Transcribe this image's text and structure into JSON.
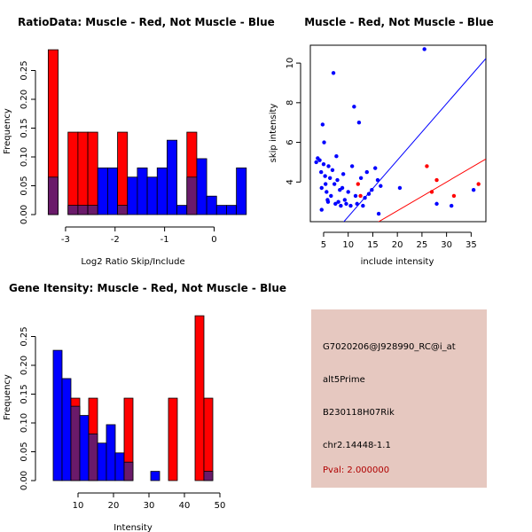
{
  "colors": {
    "red": "#ff0000",
    "blue": "#0000ff",
    "overlap": "#6a1a6a",
    "panel_bg": "#e6c8c0"
  },
  "chart_data": [
    {
      "type": "bar",
      "subtype": "overlapping-histogram",
      "title": "RatioData: Muscle - Red, Not Muscle - Blue",
      "xlabel": "Log2 Ratio Skip/Include",
      "ylabel": "Frequency",
      "xlim": [
        -3.5,
        0.6
      ],
      "ylim": [
        0,
        0.3
      ],
      "xticks": [
        -3,
        -2,
        -1,
        0
      ],
      "yticks": [
        0.0,
        0.05,
        0.1,
        0.15,
        0.2,
        0.25
      ],
      "ytick_labels": [
        "0.00",
        "0.05",
        "0.10",
        "0.15",
        "0.20",
        "0.25"
      ],
      "bin_edges": [
        -3.35,
        -3.15,
        -2.95,
        -2.75,
        -2.55,
        -2.35,
        -2.15,
        -1.95,
        -1.75,
        -1.55,
        -1.35,
        -1.15,
        -0.95,
        -0.75,
        -0.55,
        -0.35,
        -0.15,
        0.05,
        0.25,
        0.45,
        0.65
      ],
      "series": [
        {
          "name": "Muscle",
          "color": "red",
          "values": [
            0.286,
            0,
            0.143,
            0.143,
            0.143,
            0,
            0,
            0.143,
            0,
            0,
            0,
            0,
            0,
            0,
            0.143,
            0,
            0,
            0,
            0,
            0
          ]
        },
        {
          "name": "Not Muscle",
          "color": "blue",
          "values": [
            0.065,
            0,
            0.016,
            0.016,
            0.016,
            0.081,
            0.081,
            0.016,
            0.065,
            0.081,
            0.065,
            0.081,
            0.129,
            0.016,
            0.065,
            0.097,
            0.032,
            0.016,
            0.016,
            0.081
          ]
        }
      ]
    },
    {
      "type": "scatter",
      "title": "Muscle - Red, Not Muscle - Blue",
      "xlabel": "include intensity",
      "ylabel": "skip intensity",
      "xlim": [
        2.3,
        38
      ],
      "ylim": [
        2,
        10.9
      ],
      "xticks": [
        5,
        10,
        15,
        20,
        25,
        30,
        35
      ],
      "yticks": [
        4,
        6,
        8,
        10
      ],
      "lines": [
        {
          "name": "fit-blue",
          "color": "blue",
          "slope": 0.285,
          "intercept": -0.6
        },
        {
          "name": "fit-red",
          "color": "red",
          "slope": 0.145,
          "intercept": -0.35
        }
      ],
      "series": [
        {
          "name": "Muscle",
          "color": "red",
          "points": [
            [
              26,
              4.8
            ],
            [
              27,
              3.5
            ],
            [
              28,
              4.1
            ],
            [
              31.5,
              3.3
            ],
            [
              36.5,
              3.9
            ],
            [
              12.5,
              3.3
            ],
            [
              12,
              3.9
            ]
          ]
        },
        {
          "name": "Not Muscle",
          "color": "blue",
          "points": [
            [
              3.5,
              5.0
            ],
            [
              3.8,
              5.2
            ],
            [
              4.2,
              5.1
            ],
            [
              4.5,
              4.5
            ],
            [
              4.6,
              3.7
            ],
            [
              4.8,
              6.9
            ],
            [
              5.0,
              4.9
            ],
            [
              5.1,
              6.0
            ],
            [
              5.3,
              4.3
            ],
            [
              5.4,
              3.9
            ],
            [
              5.6,
              3.5
            ],
            [
              5.8,
              3.1
            ],
            [
              6.0,
              4.8
            ],
            [
              6.3,
              4.2
            ],
            [
              6.5,
              3.3
            ],
            [
              6.8,
              4.6
            ],
            [
              7.0,
              9.5
            ],
            [
              7.2,
              3.9
            ],
            [
              7.4,
              2.9
            ],
            [
              7.6,
              5.3
            ],
            [
              7.8,
              4.1
            ],
            [
              8.0,
              3.0
            ],
            [
              8.3,
              3.6
            ],
            [
              8.5,
              2.8
            ],
            [
              8.8,
              3.7
            ],
            [
              9.0,
              4.4
            ],
            [
              9.3,
              3.1
            ],
            [
              9.6,
              2.9
            ],
            [
              10.0,
              3.5
            ],
            [
              10.5,
              2.8
            ],
            [
              10.8,
              4.8
            ],
            [
              11.2,
              7.8
            ],
            [
              11.5,
              3.3
            ],
            [
              11.8,
              2.9
            ],
            [
              12.2,
              7.0
            ],
            [
              12.6,
              4.2
            ],
            [
              13.0,
              2.8
            ],
            [
              13.4,
              3.2
            ],
            [
              13.8,
              4.5
            ],
            [
              14.2,
              3.4
            ],
            [
              14.8,
              3.6
            ],
            [
              15.5,
              4.7
            ],
            [
              16.0,
              4.1
            ],
            [
              16.2,
              2.4
            ],
            [
              16.6,
              3.8
            ],
            [
              20.5,
              3.7
            ],
            [
              25.5,
              10.7
            ],
            [
              28.0,
              2.9
            ],
            [
              31.0,
              2.8
            ],
            [
              35.5,
              3.6
            ],
            [
              4.6,
              2.6
            ],
            [
              5.9,
              3.0
            ]
          ]
        }
      ]
    },
    {
      "type": "bar",
      "subtype": "overlapping-histogram",
      "title": "Gene Itensity: Muscle - Red, Not Muscle - Blue",
      "xlabel": "Intensity",
      "ylabel": "Frequency",
      "xlim": [
        0,
        50
      ],
      "ylim": [
        0,
        0.3
      ],
      "xticks": [
        10,
        20,
        30,
        40,
        50
      ],
      "yticks": [
        0.0,
        0.05,
        0.1,
        0.15,
        0.2,
        0.25
      ],
      "ytick_labels": [
        "0.00",
        "0.05",
        "0.10",
        "0.15",
        "0.20",
        "0.25"
      ],
      "bin_edges": [
        3,
        5.5,
        8,
        10.5,
        13,
        15.5,
        18,
        20.5,
        23,
        25.5,
        28,
        30.5,
        33,
        35.5,
        38,
        40.5,
        43,
        45.5,
        48
      ],
      "series": [
        {
          "name": "Muscle",
          "color": "red",
          "values": [
            0,
            0,
            0.143,
            0,
            0.143,
            0,
            0,
            0,
            0.143,
            0,
            0,
            0,
            0,
            0.143,
            0,
            0,
            0.286,
            0.143
          ]
        },
        {
          "name": "Not Muscle",
          "color": "blue",
          "values": [
            0.226,
            0.177,
            0.129,
            0.113,
            0.081,
            0.065,
            0.097,
            0.048,
            0.032,
            0,
            0,
            0.016,
            0,
            0,
            0,
            0,
            0,
            0.016
          ]
        }
      ]
    }
  ],
  "info_panel": {
    "probe_id": "G7020206@J928990_RC@i_at",
    "event_type": "alt5Prime",
    "gene": "B230118H07Rik",
    "location": "chr2.14448-1.1",
    "pval": "Pval: 2.000000"
  }
}
